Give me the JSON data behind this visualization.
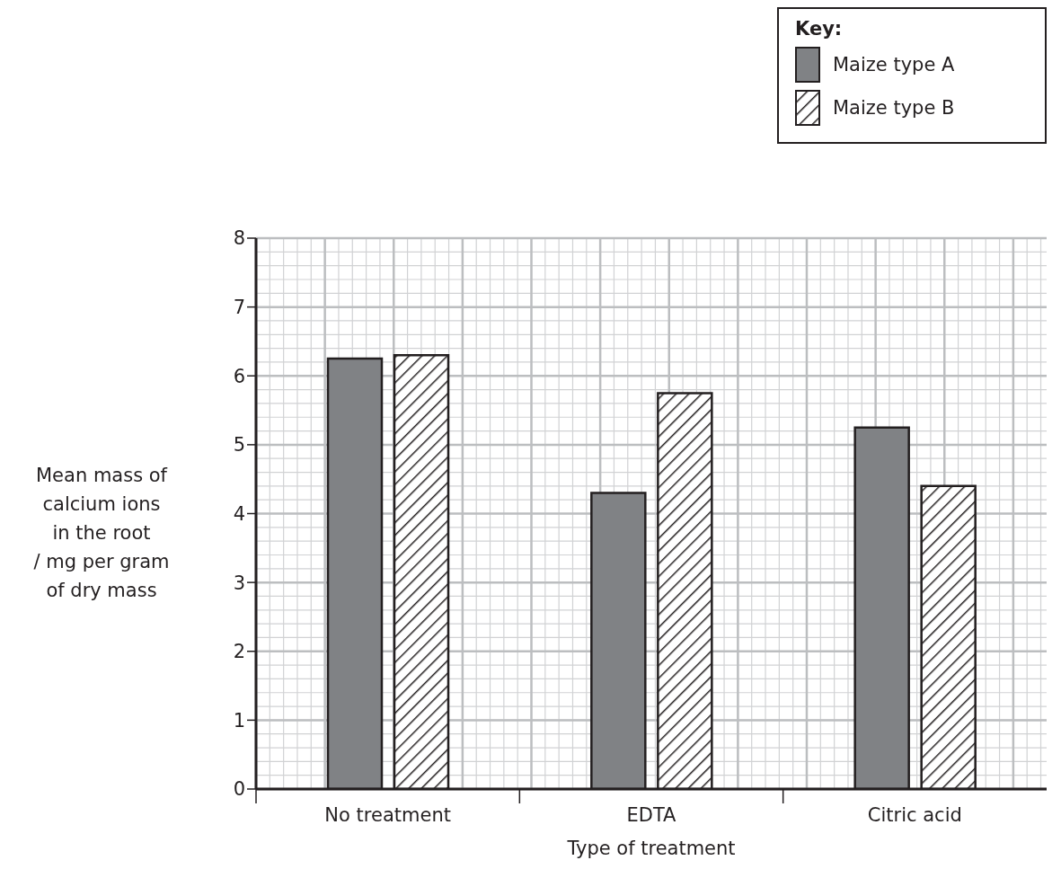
{
  "chart_data": {
    "type": "bar",
    "xlabel": "Type of treatment",
    "ylabel": "Mean mass of\ncalcium ions\nin the root\n/ mg per gram\nof dry mass",
    "legend_title": "Key:",
    "categories": [
      "No treatment",
      "EDTA",
      "Citric acid"
    ],
    "series": [
      {
        "name": "Maize type A",
        "color": "#808285",
        "values": [
          6.25,
          4.3,
          5.25
        ]
      },
      {
        "name": "Maize type B",
        "color": "#231f20",
        "values": [
          6.3,
          5.75,
          4.4
        ]
      }
    ],
    "ylim": [
      0,
      8
    ],
    "yticks": [
      0,
      1,
      2,
      3,
      4,
      5,
      6,
      7,
      8
    ],
    "grid": true,
    "legend": "top right"
  }
}
